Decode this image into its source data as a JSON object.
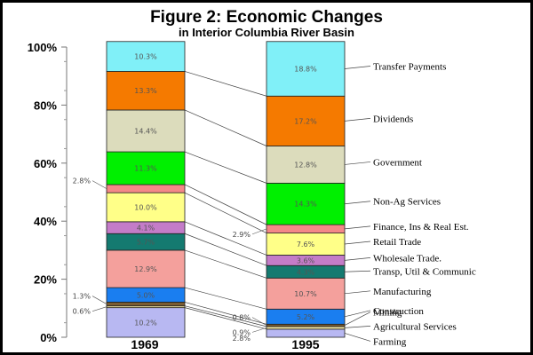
{
  "chart_data": {
    "type": "bar",
    "subtype": "stacked-100",
    "title": "Figure 2: Economic Changes",
    "subtitle": "in Interior Columbia River Basin",
    "categories": [
      "1969",
      "1995"
    ],
    "ylim": [
      0,
      100
    ],
    "y_ticks": [
      "0%",
      "20%",
      "40%",
      "60%",
      "80%",
      "100%"
    ],
    "series": [
      {
        "name": "Farming",
        "color": "#b8b8f2",
        "values": [
          10.2,
          2.8
        ],
        "labels": [
          "10.2%",
          "2.8%"
        ]
      },
      {
        "name": "Agricultural Services",
        "color": "#f5e7a4",
        "values": [
          0.6,
          0.9
        ],
        "labels": [
          "0.6%",
          "0.9%"
        ]
      },
      {
        "name": "Mining",
        "color": "#7a5c32",
        "values": [
          1.3,
          0.8
        ],
        "labels": [
          "1.3%",
          "0.8%"
        ]
      },
      {
        "name": "Construction",
        "color": "#1a7ef0",
        "values": [
          5.0,
          5.2
        ],
        "labels": [
          "5.0%",
          "5.2%"
        ]
      },
      {
        "name": "Manufacturing",
        "color": "#f4a09c",
        "values": [
          12.9,
          10.7
        ],
        "labels": [
          "12.9%",
          "10.7%"
        ]
      },
      {
        "name": "Transp, Util & Communic",
        "color": "#147a70",
        "values": [
          5.7,
          4.3
        ],
        "labels": [
          "5.7%",
          "4.3%"
        ]
      },
      {
        "name": "Wholesale Trade.",
        "color": "#c47cc8",
        "values": [
          4.1,
          3.6
        ],
        "labels": [
          "4.1%",
          "3.6%"
        ]
      },
      {
        "name": "Retail Trade",
        "color": "#ffff88",
        "values": [
          10.0,
          7.6
        ],
        "labels": [
          "10.0%",
          "7.6%"
        ]
      },
      {
        "name": "Finance, Ins & Real Est.",
        "color": "#f48888",
        "values": [
          2.8,
          2.9
        ],
        "labels": [
          "2.8%",
          "2.9%"
        ]
      },
      {
        "name": "Non-Ag Services",
        "color": "#00f000",
        "values": [
          11.3,
          14.3
        ],
        "labels": [
          "11.3%",
          "14.3%"
        ]
      },
      {
        "name": "Government",
        "color": "#dcdcbc",
        "values": [
          14.4,
          12.8
        ],
        "labels": [
          "14.4%",
          "12.8%"
        ]
      },
      {
        "name": "Dividends",
        "color": "#f57a00",
        "values": [
          13.3,
          17.2
        ],
        "labels": [
          "13.3%",
          "17.2%"
        ]
      },
      {
        "name": "Transfer Payments",
        "color": "#80f0f8",
        "values": [
          10.3,
          18.8
        ],
        "labels": [
          "10.3%",
          "18.8%"
        ]
      }
    ]
  }
}
